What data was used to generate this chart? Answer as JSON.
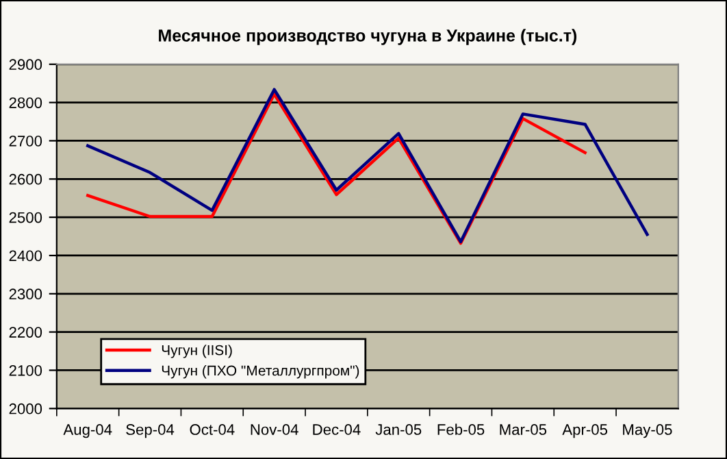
{
  "chart_data": {
    "type": "line",
    "title": "Месячное производство чугуна в Украине (тыс.т)",
    "categories": [
      "Aug-04",
      "Sep-04",
      "Oct-04",
      "Nov-04",
      "Dec-04",
      "Jan-05",
      "Feb-05",
      "Mar-05",
      "Apr-05",
      "May-05"
    ],
    "series": [
      {
        "name": "Чугун (IISI)",
        "color": "#ff0000",
        "values": [
          2557,
          2502,
          2502,
          2822,
          2559,
          2707,
          2432,
          2758,
          2669,
          null
        ]
      },
      {
        "name": "Чугун (ПХО \"Металлургпром\")",
        "color": "#000080",
        "values": [
          2687,
          2617,
          2518,
          2834,
          2571,
          2719,
          2436,
          2770,
          2743,
          2455
        ]
      }
    ],
    "ylim": [
      2000,
      2900
    ],
    "yticks": [
      2000,
      2100,
      2200,
      2300,
      2400,
      2500,
      2600,
      2700,
      2800,
      2900
    ],
    "grid": "y",
    "legend": "bottom left",
    "marker": "none",
    "line_style": "solid"
  }
}
